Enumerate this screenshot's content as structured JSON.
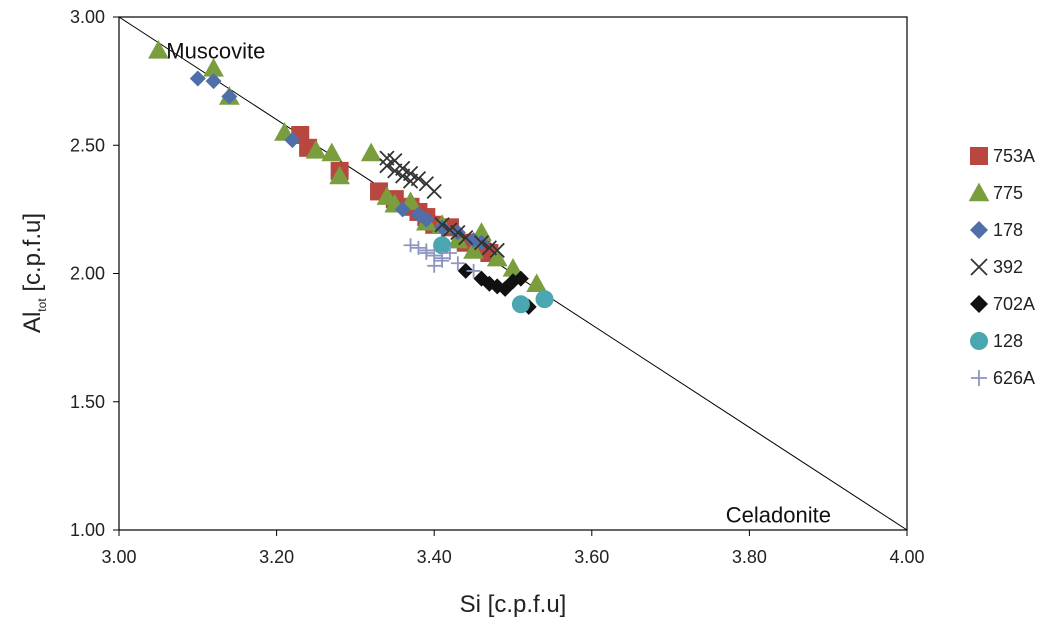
{
  "chart_data": {
    "type": "scatter",
    "xlabel": "Si [c.p.f.u]",
    "ylabel_main": "Al",
    "ylabel_sub": "tot",
    "ylabel_rest": " [c.p.f.u]",
    "xlim": [
      3.0,
      4.0
    ],
    "ylim": [
      1.0,
      3.0
    ],
    "x_ticks": [
      "3.00",
      "3.20",
      "3.40",
      "3.60",
      "3.80",
      "4.00"
    ],
    "y_ticks": [
      "1.00",
      "1.50",
      "2.00",
      "2.50",
      "3.00"
    ],
    "grid": false,
    "legend_position": "right",
    "reference_line": {
      "from": [
        3.0,
        3.0
      ],
      "to": [
        4.0,
        1.0
      ]
    },
    "annotations": [
      {
        "text": "Muscovite",
        "x": 3.06,
        "y": 2.87
      },
      {
        "text": "Celadonite",
        "x": 3.77,
        "y": 1.06
      }
    ],
    "series": [
      {
        "name": "753A",
        "marker": "square",
        "color": "#b8473f",
        "points": [
          [
            3.23,
            2.54
          ],
          [
            3.24,
            2.49
          ],
          [
            3.28,
            2.4
          ],
          [
            3.33,
            2.32
          ],
          [
            3.35,
            2.29
          ],
          [
            3.37,
            2.26
          ],
          [
            3.38,
            2.24
          ],
          [
            3.39,
            2.22
          ],
          [
            3.4,
            2.19
          ],
          [
            3.42,
            2.18
          ],
          [
            3.44,
            2.12
          ],
          [
            3.46,
            2.1
          ],
          [
            3.47,
            2.08
          ]
        ]
      },
      {
        "name": "775",
        "marker": "triangle",
        "color": "#7a9e3e",
        "points": [
          [
            3.05,
            2.87
          ],
          [
            3.12,
            2.8
          ],
          [
            3.14,
            2.69
          ],
          [
            3.21,
            2.55
          ],
          [
            3.25,
            2.48
          ],
          [
            3.27,
            2.47
          ],
          [
            3.28,
            2.38
          ],
          [
            3.32,
            2.47
          ],
          [
            3.34,
            2.3
          ],
          [
            3.35,
            2.27
          ],
          [
            3.37,
            2.28
          ],
          [
            3.39,
            2.2
          ],
          [
            3.41,
            2.19
          ],
          [
            3.43,
            2.13
          ],
          [
            3.45,
            2.09
          ],
          [
            3.46,
            2.16
          ],
          [
            3.48,
            2.06
          ],
          [
            3.5,
            2.02
          ],
          [
            3.53,
            1.96
          ]
        ]
      },
      {
        "name": "178",
        "marker": "diamond",
        "color": "#4f6fa8",
        "points": [
          [
            3.1,
            2.76
          ],
          [
            3.12,
            2.75
          ],
          [
            3.14,
            2.69
          ],
          [
            3.22,
            2.52
          ],
          [
            3.36,
            2.25
          ],
          [
            3.38,
            2.23
          ],
          [
            3.39,
            2.21
          ],
          [
            3.41,
            2.18
          ],
          [
            3.43,
            2.16
          ],
          [
            3.45,
            2.13
          ],
          [
            3.46,
            2.12
          ]
        ]
      },
      {
        "name": "392",
        "marker": "x",
        "color": "#333333",
        "points": [
          [
            3.34,
            2.45
          ],
          [
            3.35,
            2.44
          ],
          [
            3.36,
            2.41
          ],
          [
            3.37,
            2.39
          ],
          [
            3.38,
            2.37
          ],
          [
            3.39,
            2.35
          ],
          [
            3.4,
            2.32
          ],
          [
            3.34,
            2.42
          ],
          [
            3.35,
            2.4
          ],
          [
            3.36,
            2.38
          ],
          [
            3.37,
            2.36
          ],
          [
            3.41,
            2.19
          ],
          [
            3.42,
            2.17
          ],
          [
            3.43,
            2.16
          ],
          [
            3.44,
            2.14
          ],
          [
            3.46,
            2.12
          ],
          [
            3.47,
            2.1
          ],
          [
            3.48,
            2.09
          ]
        ]
      },
      {
        "name": "702A",
        "marker": "diamond",
        "color": "#111111",
        "points": [
          [
            3.44,
            2.01
          ],
          [
            3.46,
            1.98
          ],
          [
            3.47,
            1.96
          ],
          [
            3.48,
            1.95
          ],
          [
            3.49,
            1.94
          ],
          [
            3.5,
            1.97
          ],
          [
            3.52,
            1.87
          ],
          [
            3.51,
            1.98
          ]
        ]
      },
      {
        "name": "128",
        "marker": "circle",
        "color": "#4aa6b0",
        "points": [
          [
            3.41,
            2.11
          ],
          [
            3.51,
            1.88
          ],
          [
            3.54,
            1.9
          ]
        ]
      },
      {
        "name": "626A",
        "marker": "plus",
        "color": "#8d95c2",
        "points": [
          [
            3.37,
            2.11
          ],
          [
            3.38,
            2.1
          ],
          [
            3.39,
            2.08
          ],
          [
            3.4,
            2.07
          ],
          [
            3.41,
            2.05
          ],
          [
            3.4,
            2.03
          ],
          [
            3.41,
            2.06
          ],
          [
            3.42,
            2.08
          ],
          [
            3.43,
            2.04
          ],
          [
            3.45,
            2.01
          ],
          [
            3.39,
            2.09
          ]
        ]
      }
    ]
  }
}
